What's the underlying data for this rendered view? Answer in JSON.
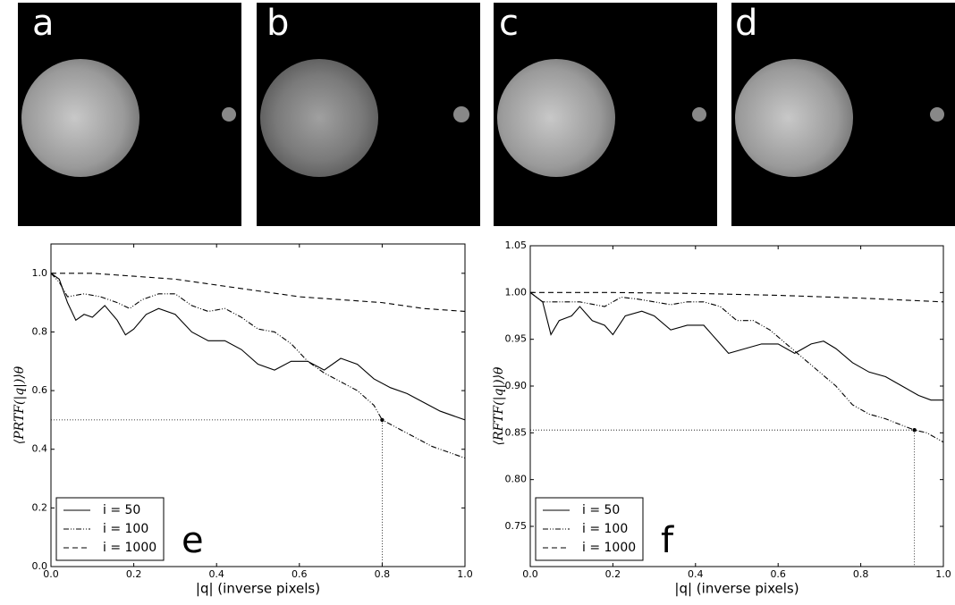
{
  "panels": [
    {
      "label": "a"
    },
    {
      "label": "b"
    },
    {
      "label": "c"
    },
    {
      "label": "d"
    }
  ],
  "chart_data": [
    {
      "type": "line",
      "panel": "e",
      "xlabel": "|q| (inverse pixels)",
      "ylabel": "⟨PRTF(|q|)⟩θ",
      "xlim": [
        0,
        1
      ],
      "ylim": [
        0,
        1.1
      ],
      "xticks": [
        {
          "value": 0,
          "label": "0.0"
        },
        0.2,
        0.4,
        0.6,
        0.8,
        {
          "value": 1,
          "label": "1.0"
        }
      ],
      "yticks": [
        {
          "value": 0,
          "label": "0.0"
        },
        0.2,
        0.4,
        0.6,
        0.8,
        {
          "value": 1,
          "label": "1.0"
        }
      ],
      "legend": "lower left",
      "series": [
        {
          "name": "i = 50",
          "color": "#000000",
          "linestyle": "solid",
          "x": [
            0,
            0.02,
            0.04,
            0.06,
            0.08,
            0.1,
            0.13,
            0.16,
            0.18,
            0.2,
            0.23,
            0.26,
            0.3,
            0.34,
            0.38,
            0.42,
            0.46,
            0.5,
            0.54,
            0.58,
            0.62,
            0.66,
            0.7,
            0.74,
            0.78,
            0.82,
            0.86,
            0.9,
            0.94,
            0.98,
            1.0
          ],
          "values": [
            1.0,
            0.98,
            0.9,
            0.84,
            0.86,
            0.85,
            0.89,
            0.84,
            0.79,
            0.81,
            0.86,
            0.88,
            0.86,
            0.8,
            0.77,
            0.77,
            0.74,
            0.69,
            0.67,
            0.7,
            0.7,
            0.67,
            0.71,
            0.69,
            0.64,
            0.61,
            0.59,
            0.56,
            0.53,
            0.51,
            0.5
          ]
        },
        {
          "name": "i = 100",
          "color": "#000000",
          "linestyle": "dashdot",
          "x": [
            0,
            0.02,
            0.04,
            0.08,
            0.12,
            0.16,
            0.19,
            0.22,
            0.26,
            0.3,
            0.34,
            0.38,
            0.42,
            0.46,
            0.5,
            0.54,
            0.58,
            0.62,
            0.66,
            0.7,
            0.74,
            0.78,
            0.8,
            0.84,
            0.88,
            0.92,
            0.96,
            1.0
          ],
          "values": [
            1.0,
            0.97,
            0.92,
            0.93,
            0.92,
            0.9,
            0.88,
            0.91,
            0.93,
            0.93,
            0.89,
            0.87,
            0.88,
            0.85,
            0.81,
            0.8,
            0.76,
            0.7,
            0.66,
            0.63,
            0.6,
            0.55,
            0.5,
            0.47,
            0.44,
            0.41,
            0.39,
            0.37
          ]
        },
        {
          "name": "i = 1000",
          "color": "#000000",
          "linestyle": "dashed",
          "x": [
            0,
            0.1,
            0.2,
            0.3,
            0.4,
            0.5,
            0.6,
            0.7,
            0.8,
            0.9,
            1.0
          ],
          "values": [
            1.0,
            1.0,
            0.99,
            0.98,
            0.96,
            0.94,
            0.92,
            0.91,
            0.9,
            0.88,
            0.87
          ]
        }
      ],
      "marker": {
        "x": 0.8,
        "y": 0.5
      }
    },
    {
      "type": "line",
      "panel": "f",
      "xlabel": "|q| (inverse pixels)",
      "ylabel": "⟨RFTF(|q|)⟩θ",
      "xlim": [
        0,
        1
      ],
      "ylim": [
        0.707,
        1.05
      ],
      "xticks": [
        {
          "value": 0,
          "label": "0.0"
        },
        0.2,
        0.4,
        0.6,
        0.8,
        {
          "value": 1,
          "label": "1.0"
        }
      ],
      "yticks": [
        0.75,
        {
          "value": 0.8,
          "label": "0.80"
        },
        0.85,
        {
          "value": 0.9,
          "label": "0.90"
        },
        0.95,
        {
          "value": 1,
          "label": "1.00"
        },
        1.05
      ],
      "legend": "lower left",
      "series": [
        {
          "name": "i = 50",
          "color": "#000000",
          "linestyle": "solid",
          "x": [
            0,
            0.03,
            0.05,
            0.07,
            0.1,
            0.12,
            0.15,
            0.18,
            0.2,
            0.23,
            0.27,
            0.3,
            0.34,
            0.38,
            0.42,
            0.44,
            0.48,
            0.52,
            0.56,
            0.6,
            0.64,
            0.68,
            0.71,
            0.74,
            0.78,
            0.82,
            0.86,
            0.9,
            0.94,
            0.97,
            1.0
          ],
          "values": [
            1.0,
            0.99,
            0.955,
            0.97,
            0.975,
            0.985,
            0.97,
            0.965,
            0.955,
            0.975,
            0.98,
            0.975,
            0.96,
            0.965,
            0.965,
            0.955,
            0.935,
            0.94,
            0.945,
            0.945,
            0.935,
            0.945,
            0.948,
            0.94,
            0.925,
            0.915,
            0.91,
            0.9,
            0.89,
            0.885,
            0.885
          ]
        },
        {
          "name": "i = 100",
          "color": "#000000",
          "linestyle": "dashdot",
          "x": [
            0,
            0.03,
            0.08,
            0.12,
            0.18,
            0.22,
            0.26,
            0.3,
            0.34,
            0.38,
            0.42,
            0.46,
            0.5,
            0.54,
            0.58,
            0.62,
            0.66,
            0.7,
            0.74,
            0.78,
            0.82,
            0.86,
            0.9,
            0.93,
            0.96,
            1.0
          ],
          "values": [
            1.0,
            0.99,
            0.99,
            0.99,
            0.985,
            0.995,
            0.993,
            0.99,
            0.987,
            0.99,
            0.99,
            0.985,
            0.97,
            0.97,
            0.96,
            0.945,
            0.93,
            0.915,
            0.9,
            0.88,
            0.87,
            0.865,
            0.858,
            0.853,
            0.85,
            0.84
          ]
        },
        {
          "name": "i = 1000",
          "color": "#000000",
          "linestyle": "dashed",
          "x": [
            0,
            0.2,
            0.4,
            0.6,
            0.8,
            1.0
          ],
          "values": [
            1.0,
            1.0,
            0.999,
            0.997,
            0.994,
            0.99
          ]
        }
      ],
      "marker": {
        "x": 0.93,
        "y": 0.853
      }
    }
  ]
}
